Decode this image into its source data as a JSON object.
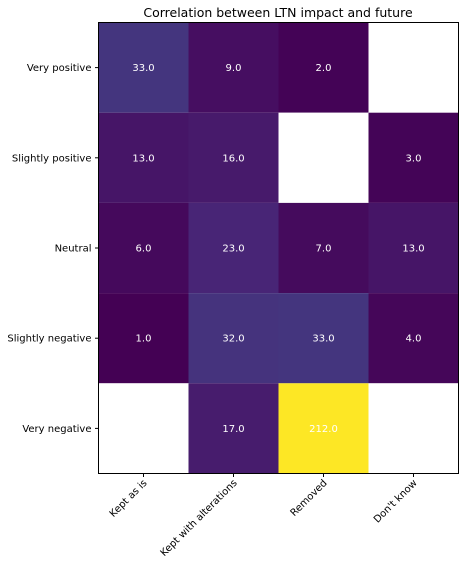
{
  "chart_data": {
    "type": "heatmap",
    "title": "Correlation between LTN impact and future",
    "xlabel": "",
    "ylabel": "",
    "x_categories": [
      "Kept as is",
      "Kept with alterations",
      "Removed",
      "Don't know"
    ],
    "y_categories": [
      "Very positive",
      "Slightly positive",
      "Neutral",
      "Slightly negative",
      "Very negative"
    ],
    "values": [
      [
        33.0,
        9.0,
        2.0,
        null
      ],
      [
        13.0,
        16.0,
        null,
        3.0
      ],
      [
        6.0,
        23.0,
        7.0,
        13.0
      ],
      [
        1.0,
        32.0,
        33.0,
        4.0
      ],
      [
        null,
        17.0,
        212.0,
        null
      ]
    ],
    "value_labels": [
      [
        "33.0",
        "9.0",
        "2.0",
        ""
      ],
      [
        "13.0",
        "16.0",
        "",
        "3.0"
      ],
      [
        "6.0",
        "23.0",
        "7.0",
        "13.0"
      ],
      [
        "1.0",
        "32.0",
        "33.0",
        "4.0"
      ],
      [
        "",
        "17.0",
        "212.0",
        ""
      ]
    ],
    "colormap": "viridis",
    "missing_color": "#ffffff",
    "grid": false,
    "colorbar": false
  }
}
